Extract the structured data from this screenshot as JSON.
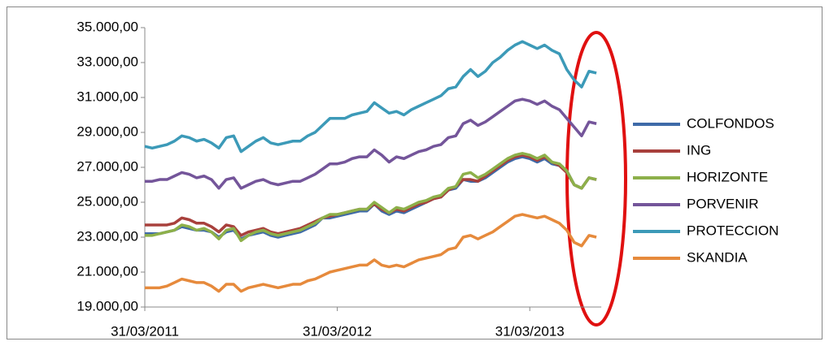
{
  "chart_data": {
    "type": "line",
    "categories": [
      "31/03/2011",
      null,
      null,
      null,
      null,
      null,
      null,
      null,
      null,
      null,
      null,
      null,
      null,
      null,
      null,
      null,
      null,
      null,
      null,
      null,
      null,
      null,
      null,
      null,
      null,
      null,
      "31/03/2012",
      null,
      null,
      null,
      null,
      null,
      null,
      null,
      null,
      null,
      null,
      null,
      null,
      null,
      null,
      null,
      null,
      null,
      null,
      null,
      null,
      null,
      null,
      null,
      null,
      null,
      "31/03/2013",
      null,
      null,
      null,
      null,
      null,
      null,
      null,
      null,
      null
    ],
    "ylim": [
      19000,
      35000
    ],
    "yticks": [
      {
        "value": 19000,
        "label": "19.000,00"
      },
      {
        "value": 21000,
        "label": "21.000,00"
      },
      {
        "value": 23000,
        "label": "23.000,00"
      },
      {
        "value": 25000,
        "label": "25.000,00"
      },
      {
        "value": 27000,
        "label": "27.000,00"
      },
      {
        "value": 29000,
        "label": "29.000,00"
      },
      {
        "value": 31000,
        "label": "31.000,00"
      },
      {
        "value": 33000,
        "label": "33.000,00"
      },
      {
        "value": 35000,
        "label": "35.000,00"
      }
    ],
    "grid": false,
    "legend": "right",
    "series": [
      {
        "name": "COLFONDOS",
        "color": "#3e6aa8",
        "values": [
          23200,
          23200,
          23200,
          23300,
          23400,
          23600,
          23500,
          23400,
          23400,
          23300,
          23000,
          23300,
          23400,
          22900,
          23100,
          23200,
          23300,
          23100,
          23000,
          23100,
          23200,
          23300,
          23500,
          23700,
          24100,
          24100,
          24200,
          24300,
          24400,
          24500,
          24500,
          24900,
          24500,
          24300,
          24500,
          24400,
          24600,
          24800,
          25000,
          25200,
          25300,
          25700,
          25800,
          26300,
          26200,
          26200,
          26400,
          26700,
          27000,
          27300,
          27500,
          27600,
          27500,
          27300,
          27500,
          27200,
          27100,
          26800,
          26000,
          25800,
          26400,
          26300
        ]
      },
      {
        "name": "ING",
        "color": "#a8403c",
        "values": [
          23700,
          23700,
          23700,
          23700,
          23800,
          24100,
          24000,
          23800,
          23800,
          23600,
          23300,
          23700,
          23600,
          23100,
          23300,
          23400,
          23500,
          23300,
          23200,
          23300,
          23400,
          23500,
          23700,
          23900,
          24100,
          24200,
          24300,
          24400,
          24500,
          24600,
          24600,
          24900,
          24600,
          24400,
          24600,
          24500,
          24700,
          24900,
          25000,
          25200,
          25300,
          25700,
          25900,
          26300,
          26300,
          26200,
          26500,
          26800,
          27100,
          27400,
          27600,
          27700,
          27600,
          27400,
          27600,
          27300,
          27100,
          26700,
          26000,
          25800,
          26400,
          26300
        ]
      },
      {
        "name": "HORIZONTE",
        "color": "#8db04a",
        "values": [
          23100,
          23100,
          23200,
          23300,
          23400,
          23700,
          23600,
          23400,
          23500,
          23300,
          22900,
          23400,
          23500,
          22800,
          23100,
          23300,
          23400,
          23200,
          23100,
          23200,
          23300,
          23400,
          23600,
          23800,
          24100,
          24300,
          24300,
          24400,
          24500,
          24600,
          24600,
          25000,
          24700,
          24400,
          24700,
          24600,
          24800,
          25000,
          25100,
          25300,
          25400,
          25800,
          25900,
          26600,
          26700,
          26400,
          26600,
          26900,
          27200,
          27500,
          27700,
          27800,
          27700,
          27500,
          27700,
          27300,
          27200,
          26800,
          26000,
          25800,
          26400,
          26300
        ]
      },
      {
        "name": "PORVENIR",
        "color": "#74559a",
        "values": [
          26200,
          26200,
          26300,
          26300,
          26500,
          26700,
          26600,
          26400,
          26500,
          26300,
          25800,
          26300,
          26400,
          25800,
          26000,
          26200,
          26300,
          26100,
          26000,
          26100,
          26200,
          26200,
          26400,
          26600,
          26900,
          27200,
          27200,
          27300,
          27500,
          27600,
          27600,
          28000,
          27700,
          27300,
          27600,
          27500,
          27700,
          27900,
          28000,
          28200,
          28300,
          28700,
          28800,
          29500,
          29700,
          29400,
          29600,
          29900,
          30200,
          30500,
          30800,
          30900,
          30800,
          30600,
          30800,
          30500,
          30300,
          29800,
          29300,
          28800,
          29600,
          29500
        ]
      },
      {
        "name": "PROTECCION",
        "color": "#3c9ab8",
        "values": [
          28200,
          28100,
          28200,
          28300,
          28500,
          28800,
          28700,
          28500,
          28600,
          28400,
          28100,
          28700,
          28800,
          27900,
          28200,
          28500,
          28700,
          28400,
          28300,
          28400,
          28500,
          28500,
          28800,
          29000,
          29400,
          29800,
          29800,
          29800,
          30000,
          30100,
          30200,
          30700,
          30400,
          30100,
          30200,
          30000,
          30300,
          30500,
          30700,
          30900,
          31100,
          31500,
          31600,
          32200,
          32600,
          32200,
          32500,
          33000,
          33300,
          33700,
          34000,
          34200,
          34000,
          33800,
          34000,
          33700,
          33500,
          32600,
          32000,
          31600,
          32500,
          32400
        ]
      },
      {
        "name": "SKANDIA",
        "color": "#e68a3c",
        "values": [
          20100,
          20100,
          20100,
          20200,
          20400,
          20600,
          20500,
          20400,
          20400,
          20200,
          19900,
          20300,
          20300,
          19900,
          20100,
          20200,
          20300,
          20200,
          20100,
          20200,
          20300,
          20300,
          20500,
          20600,
          20800,
          21000,
          21100,
          21200,
          21300,
          21400,
          21400,
          21700,
          21400,
          21300,
          21400,
          21300,
          21500,
          21700,
          21800,
          21900,
          22000,
          22300,
          22400,
          23000,
          23100,
          22900,
          23100,
          23300,
          23600,
          23900,
          24200,
          24300,
          24200,
          24100,
          24200,
          24000,
          23800,
          23400,
          22700,
          22500,
          23100,
          23000
        ]
      }
    ]
  }
}
